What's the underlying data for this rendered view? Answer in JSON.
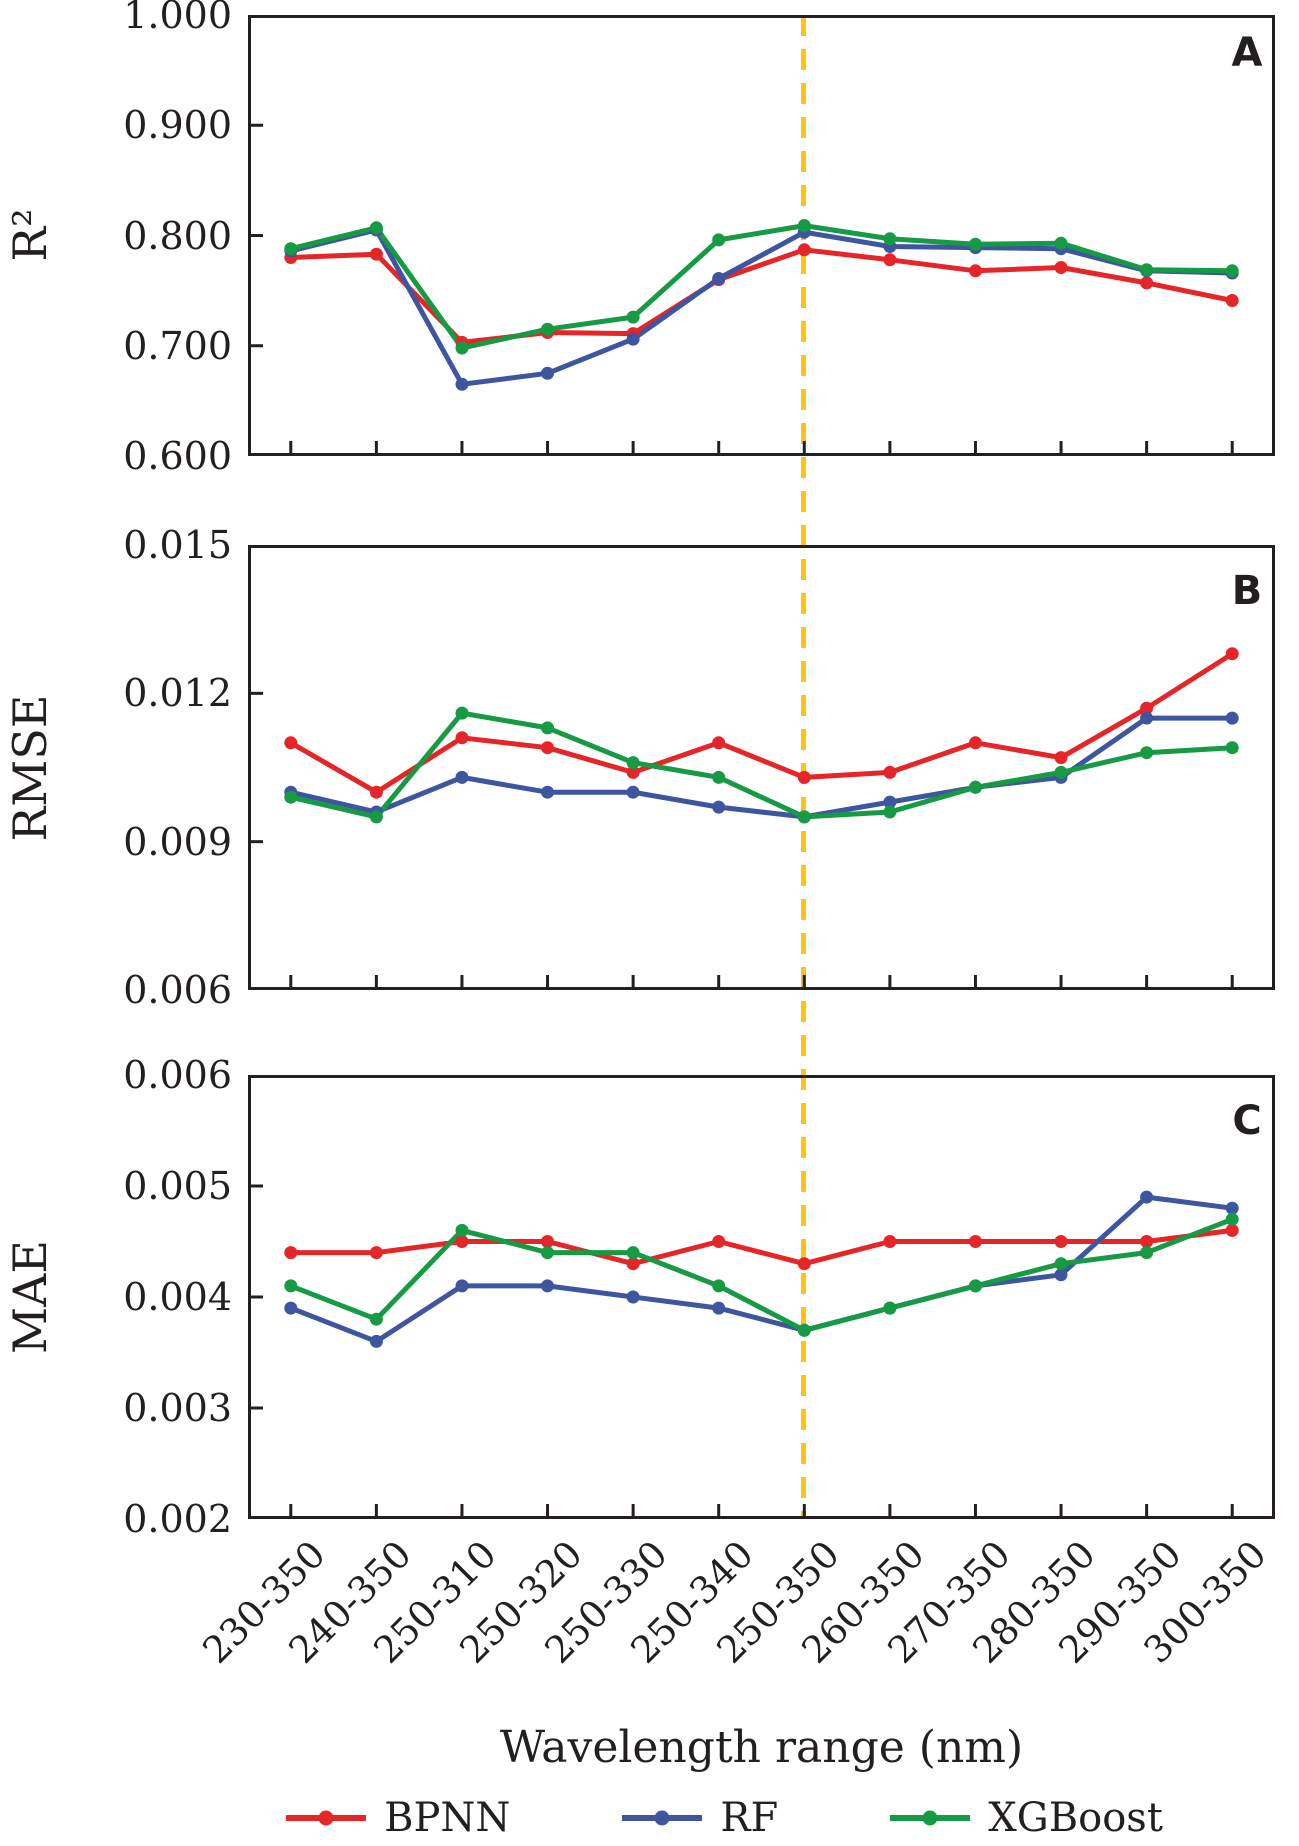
{
  "figure": {
    "xlabel": "Wavelength range (nm)",
    "highlight_x": "250-350",
    "highlight_color": "#fdc411",
    "axis_color": "#231f20",
    "background": "#ffffff"
  },
  "legend": {
    "items": [
      {
        "label": "BPNN",
        "color": "#e62528"
      },
      {
        "label": "RF",
        "color": "#3e55a0"
      },
      {
        "label": "XGBoost",
        "color": "#169a44"
      }
    ]
  },
  "chart_data": [
    {
      "type": "line",
      "panel_label": "A",
      "ylabel": "R²",
      "xlabel": "Wavelength range (nm)",
      "ylim": [
        0.6,
        1.0
      ],
      "grid": false,
      "highlight_x": "250-350",
      "yticks": [
        {
          "v": 1.0,
          "label": "1.000"
        },
        {
          "v": 0.9,
          "label": "0.900"
        },
        {
          "v": 0.8,
          "label": "0.800"
        },
        {
          "v": 0.7,
          "label": "0.700"
        },
        {
          "v": 0.6,
          "label": "0.600"
        }
      ],
      "categories": [
        "230-350",
        "240-350",
        "250-310",
        "250-320",
        "250-330",
        "250-340",
        "250-350",
        "260-350",
        "270-350",
        "280-350",
        "290-350",
        "300-350"
      ],
      "series": [
        {
          "name": "BPNN",
          "color": "#e62528",
          "values": [
            0.78,
            0.783,
            0.703,
            0.712,
            0.711,
            0.76,
            0.787,
            0.778,
            0.768,
            0.771,
            0.757,
            0.741
          ]
        },
        {
          "name": "RF",
          "color": "#3e55a0",
          "values": [
            0.786,
            0.805,
            0.665,
            0.675,
            0.706,
            0.761,
            0.803,
            0.79,
            0.789,
            0.788,
            0.768,
            0.766
          ]
        },
        {
          "name": "XGBoost",
          "color": "#169a44",
          "values": [
            0.788,
            0.807,
            0.698,
            0.715,
            0.726,
            0.796,
            0.809,
            0.797,
            0.792,
            0.793,
            0.769,
            0.768
          ]
        }
      ]
    },
    {
      "type": "line",
      "panel_label": "B",
      "ylabel": "RMSE",
      "xlabel": "Wavelength range (nm)",
      "ylim": [
        0.006,
        0.015
      ],
      "grid": false,
      "highlight_x": "250-350",
      "yticks": [
        {
          "v": 0.015,
          "label": "0.015"
        },
        {
          "v": 0.012,
          "label": "0.012"
        },
        {
          "v": 0.009,
          "label": "0.009"
        },
        {
          "v": 0.006,
          "label": "0.006"
        }
      ],
      "categories": [
        "230-350",
        "240-350",
        "250-310",
        "250-320",
        "250-330",
        "250-340",
        "250-350",
        "260-350",
        "270-350",
        "280-350",
        "290-350",
        "300-350"
      ],
      "series": [
        {
          "name": "BPNN",
          "color": "#e62528",
          "values": [
            0.011,
            0.01,
            0.0111,
            0.0109,
            0.0104,
            0.011,
            0.0103,
            0.0104,
            0.011,
            0.0107,
            0.0117,
            0.0128
          ]
        },
        {
          "name": "RF",
          "color": "#3e55a0",
          "values": [
            0.01,
            0.0096,
            0.0103,
            0.01,
            0.01,
            0.0097,
            0.0095,
            0.0098,
            0.0101,
            0.0103,
            0.0115,
            0.0115
          ]
        },
        {
          "name": "XGBoost",
          "color": "#169a44",
          "values": [
            0.0099,
            0.0095,
            0.0116,
            0.0113,
            0.0106,
            0.0103,
            0.0095,
            0.0096,
            0.0101,
            0.0104,
            0.0108,
            0.0109
          ]
        }
      ]
    },
    {
      "type": "line",
      "panel_label": "C",
      "ylabel": "MAE",
      "xlabel": "Wavelength range (nm)",
      "ylim": [
        0.002,
        0.006
      ],
      "grid": false,
      "highlight_x": "250-350",
      "yticks": [
        {
          "v": 0.006,
          "label": "0.006"
        },
        {
          "v": 0.005,
          "label": "0.005"
        },
        {
          "v": 0.004,
          "label": "0.004"
        },
        {
          "v": 0.003,
          "label": "0.003"
        },
        {
          "v": 0.002,
          "label": "0.002"
        }
      ],
      "categories": [
        "230-350",
        "240-350",
        "250-310",
        "250-320",
        "250-330",
        "250-340",
        "250-350",
        "260-350",
        "270-350",
        "280-350",
        "290-350",
        "300-350"
      ],
      "series": [
        {
          "name": "BPNN",
          "color": "#e62528",
          "values": [
            0.0044,
            0.0044,
            0.0045,
            0.0045,
            0.0043,
            0.0045,
            0.0043,
            0.0045,
            0.0045,
            0.0045,
            0.0045,
            0.0046
          ]
        },
        {
          "name": "RF",
          "color": "#3e55a0",
          "values": [
            0.0039,
            0.0036,
            0.0041,
            0.0041,
            0.004,
            0.0039,
            0.0037,
            0.0039,
            0.0041,
            0.0042,
            0.0049,
            0.0048
          ]
        },
        {
          "name": "XGBoost",
          "color": "#169a44",
          "values": [
            0.0041,
            0.0038,
            0.0046,
            0.0044,
            0.0044,
            0.0041,
            0.0037,
            0.0039,
            0.0041,
            0.0043,
            0.0044,
            0.0047
          ]
        }
      ]
    }
  ]
}
